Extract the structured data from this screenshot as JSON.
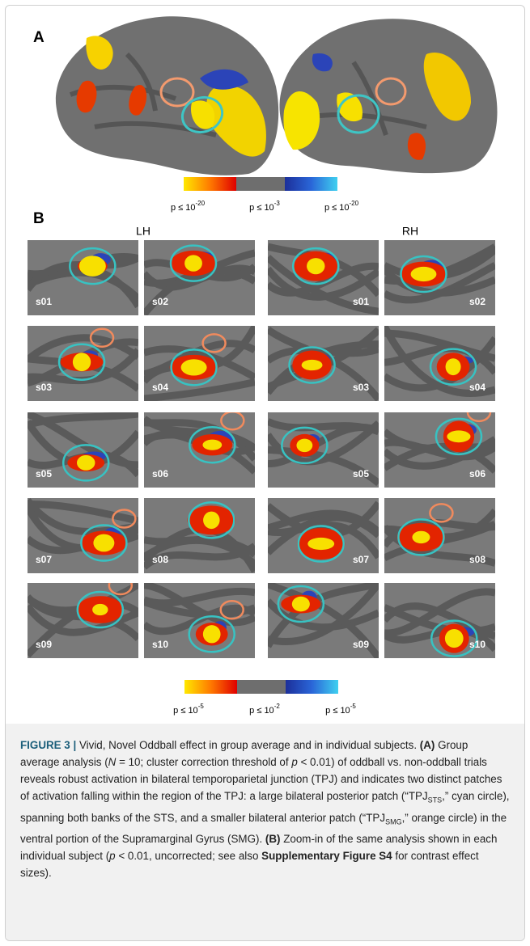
{
  "panel_a": {
    "label": "A",
    "colorbar": [
      {
        "base": "p ≤ 10",
        "exponent": "-20"
      },
      {
        "base": "p ≤ 10",
        "exponent": "-3"
      },
      {
        "base": "p ≤ 10",
        "exponent": "-20"
      }
    ]
  },
  "panel_b": {
    "label": "B",
    "hemispheres": [
      "LH",
      "RH"
    ],
    "lh_subjects": [
      "s01",
      "s02",
      "s03",
      "s04",
      "s05",
      "s06",
      "s07",
      "s08",
      "s09",
      "s10"
    ],
    "rh_subjects": [
      "s01",
      "s02",
      "s03",
      "s04",
      "s05",
      "s06",
      "s07",
      "s08",
      "s09",
      "s10"
    ],
    "colorbar": [
      {
        "base": "p ≤ 10",
        "exponent": "-5"
      },
      {
        "base": "p ≤ 10",
        "exponent": "-2"
      },
      {
        "base": "p ≤ 10",
        "exponent": "-5"
      }
    ]
  },
  "caption": {
    "segments": [
      "FIGURE 3 |",
      " Vivid, Novel Oddball effect in group average and in individual subjects. ",
      "(A)",
      " Group average analysis (",
      "N",
      " = 10; cluster correction threshold of ",
      "p",
      " < 0.01) of oddball vs. non-oddball trials reveals robust activation in bilateral temporoparietal junction (TPJ) and indicates two distinct patches of activation falling within the region of the TPJ: a large bilateral posterior patch (“TPJ",
      "STS",
      ",” cyan circle), spanning both banks of the STS, and a smaller bilateral anterior patch (“TPJ",
      "SMG",
      ",” orange circle) in the ventral portion of the Supramarginal Gyrus (SMG). ",
      "(B)",
      " Zoom-in of the same analysis shown in each individual subject (",
      "p",
      " < 0.01, uncorrected; see also ",
      "Supplementary Figure S4",
      " for contrast effect sizes)."
    ]
  }
}
